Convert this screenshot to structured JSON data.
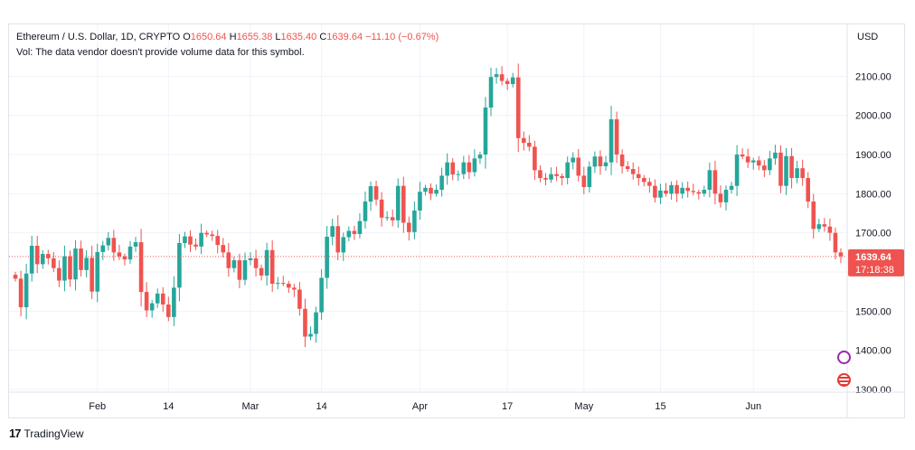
{
  "legend": {
    "symbol": "Ethereum / U.S. Dollar, 1D, CRYPTO",
    "open_label": "O",
    "open": "1650.64",
    "high_label": "H",
    "high": "1655.38",
    "low_label": "L",
    "low": "1635.40",
    "close_label": "C",
    "close": "1639.64",
    "change": "−11.10 (−0.67%)",
    "volume_note": "Vol: The data vendor doesn't provide volume data for this symbol."
  },
  "axis": {
    "currency": "USD",
    "last_price": "1639.64",
    "countdown": "17:18:38"
  },
  "footer": {
    "brand": "TradingView"
  },
  "colors": {
    "up": "#26a69a",
    "down": "#ef5350",
    "grid": "#f0f3fa"
  },
  "icons": [
    "lightning-icon",
    "us-flag-icon",
    "tradingview-logo-icon"
  ],
  "chart_data": {
    "type": "candlestick",
    "ylim": [
      1300,
      2150
    ],
    "y_ticks": [
      "1300.00",
      "1400.00",
      "1500.00",
      "1600.00",
      "1700.00",
      "1800.00",
      "1900.00",
      "2000.00",
      "2100.00"
    ],
    "x_ticks": [
      {
        "label": "Feb",
        "index": 15
      },
      {
        "label": "14",
        "index": 28
      },
      {
        "label": "Mar",
        "index": 43
      },
      {
        "label": "14",
        "index": 56
      },
      {
        "label": "Apr",
        "index": 74
      },
      {
        "label": "17",
        "index": 90
      },
      {
        "label": "May",
        "index": 104
      },
      {
        "label": "15",
        "index": 118
      },
      {
        "label": "Jun",
        "index": 135
      }
    ],
    "last_price": 1639.64,
    "close": [
      1583,
      1510,
      1596,
      1667,
      1620,
      1646,
      1635,
      1610,
      1578,
      1640,
      1581,
      1660,
      1605,
      1636,
      1550,
      1651,
      1668,
      1687,
      1650,
      1640,
      1632,
      1665,
      1676,
      1549,
      1502,
      1520,
      1545,
      1517,
      1485,
      1560,
      1674,
      1691,
      1670,
      1665,
      1700,
      1696,
      1692,
      1669,
      1650,
      1610,
      1630,
      1580,
      1630,
      1635,
      1610,
      1591,
      1656,
      1570,
      1572,
      1570,
      1560,
      1555,
      1506,
      1435,
      1442,
      1497,
      1585,
      1690,
      1717,
      1650,
      1689,
      1705,
      1697,
      1730,
      1780,
      1819,
      1785,
      1739,
      1740,
      1732,
      1820,
      1726,
      1702,
      1757,
      1805,
      1815,
      1800,
      1810,
      1846,
      1880,
      1849,
      1850,
      1880,
      1855,
      1890,
      1900,
      2020,
      2098,
      2105,
      2088,
      2080,
      2097,
      1942,
      1930,
      1920,
      1860,
      1840,
      1836,
      1850,
      1845,
      1840,
      1880,
      1892,
      1846,
      1817,
      1869,
      1895,
      1870,
      1880,
      1990,
      1900,
      1870,
      1863,
      1850,
      1840,
      1830,
      1820,
      1790,
      1808,
      1800,
      1822,
      1800,
      1815,
      1807,
      1804,
      1800,
      1810,
      1860,
      1800,
      1778,
      1810,
      1820,
      1900,
      1895,
      1880,
      1885,
      1872,
      1860,
      1890,
      1905,
      1820,
      1896,
      1840,
      1865,
      1840,
      1780,
      1710,
      1722,
      1716,
      1700,
      1650,
      1640
    ]
  }
}
